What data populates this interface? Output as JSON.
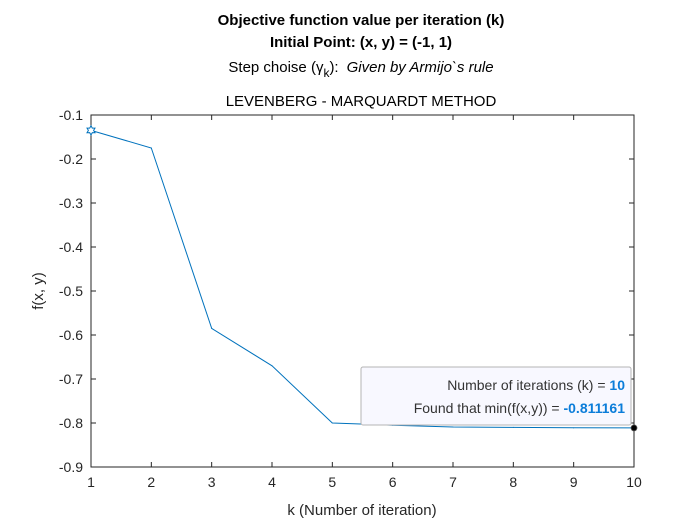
{
  "chart_data": {
    "type": "line",
    "title_lines": {
      "line1": "Objective function value per iteration (k)",
      "line2": "Initial Point: (x, y) = (-1, 1)",
      "line3_prefix": "Step choise (",
      "line3_symbol": "γ",
      "line3_subscript": "k",
      "line3_suffix": "):",
      "line3_italic": "Given by Armijo`s rule",
      "line4": "LEVENBERG - MARQUARDT METHOD"
    },
    "xlabel": "k (Number of iteration)",
    "ylabel": "f(x, y)",
    "xlim": [
      1,
      10
    ],
    "ylim": [
      -0.9,
      -0.1
    ],
    "xticks": [
      1,
      2,
      3,
      4,
      5,
      6,
      7,
      8,
      9,
      10
    ],
    "xtick_labels": [
      "1",
      "2",
      "3",
      "4",
      "5",
      "6",
      "7",
      "8",
      "9",
      "10"
    ],
    "yticks": [
      -0.1,
      -0.2,
      -0.3,
      -0.4,
      -0.5,
      -0.6,
      -0.7,
      -0.8,
      -0.9
    ],
    "ytick_labels": [
      "-0.1",
      "-0.2",
      "-0.3",
      "-0.4",
      "-0.5",
      "-0.6",
      "-0.7",
      "-0.8",
      "-0.9"
    ],
    "grid": false,
    "series": [
      {
        "x": [
          1,
          2,
          3,
          4,
          5,
          6,
          7,
          8,
          9,
          10
        ],
        "y": [
          -0.135,
          -0.175,
          -0.585,
          -0.67,
          -0.8,
          -0.805,
          -0.809,
          -0.81,
          -0.811,
          -0.811161
        ],
        "color": "#0072bd"
      }
    ],
    "markers": {
      "start": {
        "x": 1,
        "y": -0.135,
        "shape": "hexagram",
        "color": "#0072bd"
      },
      "end": {
        "x": 10,
        "y": -0.811161,
        "shape": "circle",
        "color": "#000000"
      }
    },
    "datatip": {
      "line1_label": "Number of iterations (k) = ",
      "line1_value": "10",
      "line2_label": "Found that min(f(x,y)) = ",
      "line2_value": "-0.811161",
      "value_color": "#0b7dd9",
      "placement": "bottom-right"
    }
  }
}
